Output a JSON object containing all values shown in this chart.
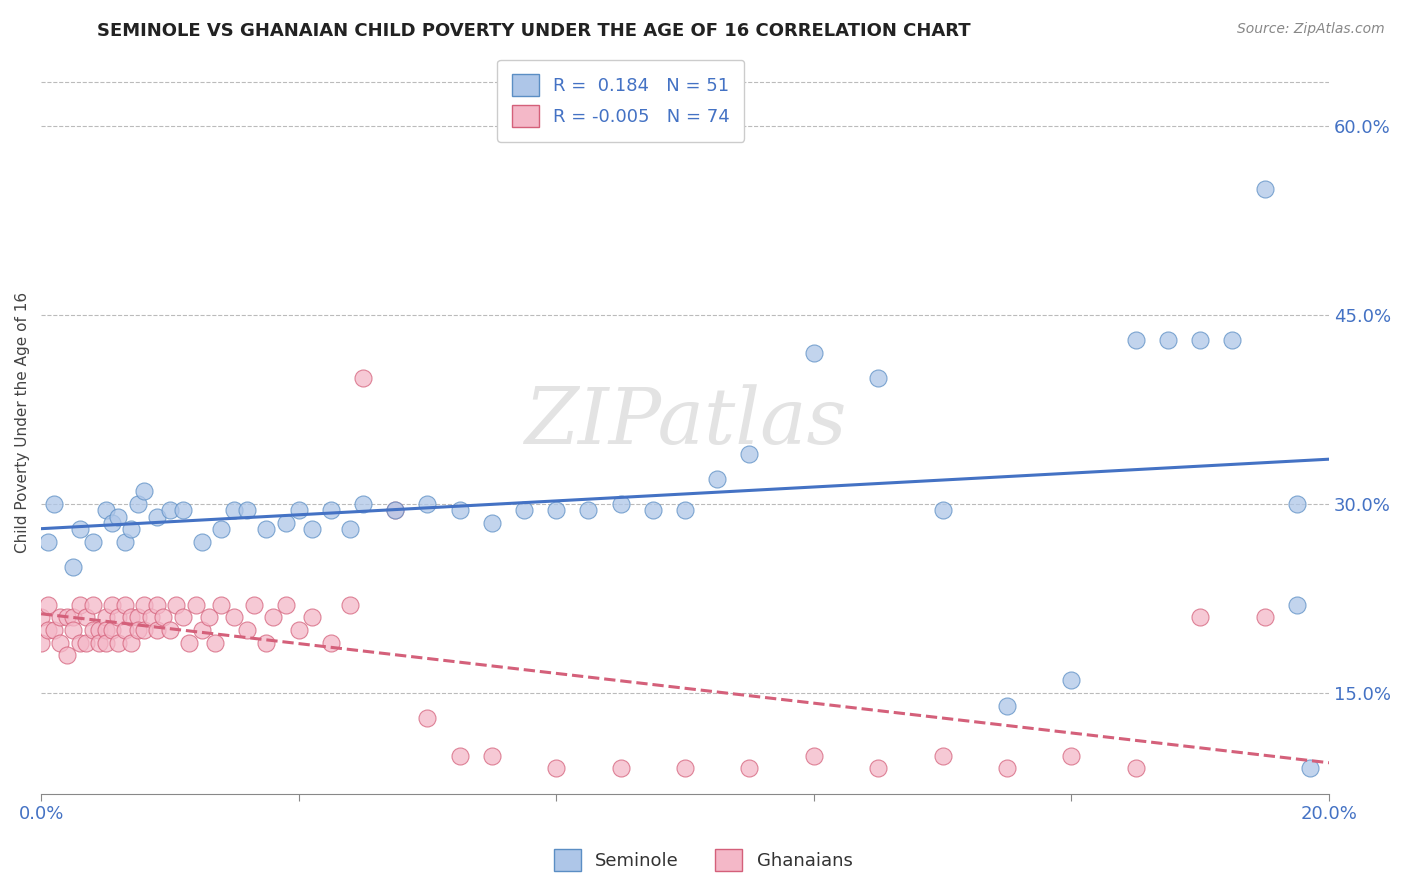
{
  "title": "SEMINOLE VS GHANAIAN CHILD POVERTY UNDER THE AGE OF 16 CORRELATION CHART",
  "source": "Source: ZipAtlas.com",
  "ylabel": "Child Poverty Under the Age of 16",
  "xlim": [
    0.0,
    0.2
  ],
  "ylim": [
    0.07,
    0.66
  ],
  "y_tick_values_right": [
    0.15,
    0.3,
    0.45,
    0.6
  ],
  "y_tick_labels_right": [
    "15.0%",
    "30.0%",
    "45.0%",
    "60.0%"
  ],
  "seminole_R": 0.184,
  "seminole_N": 51,
  "ghanaian_R": -0.005,
  "ghanaian_N": 74,
  "seminole_color": "#aec6e8",
  "ghanaian_color": "#f4b8c8",
  "seminole_edge_color": "#5b8ec4",
  "ghanaian_edge_color": "#d4607a",
  "seminole_line_color": "#4472c4",
  "ghanaian_line_color": "#d4607a",
  "background_color": "#ffffff",
  "watermark": "ZIPatlas",
  "seminole_x": [
    0.001,
    0.002,
    0.005,
    0.006,
    0.008,
    0.01,
    0.011,
    0.012,
    0.013,
    0.014,
    0.015,
    0.016,
    0.018,
    0.02,
    0.022,
    0.025,
    0.028,
    0.03,
    0.032,
    0.035,
    0.038,
    0.04,
    0.042,
    0.045,
    0.048,
    0.05,
    0.055,
    0.06,
    0.065,
    0.07,
    0.075,
    0.08,
    0.085,
    0.09,
    0.095,
    0.1,
    0.105,
    0.11,
    0.12,
    0.13,
    0.14,
    0.15,
    0.16,
    0.17,
    0.175,
    0.18,
    0.185,
    0.19,
    0.195,
    0.195,
    0.197
  ],
  "seminole_y": [
    0.27,
    0.3,
    0.25,
    0.28,
    0.27,
    0.295,
    0.285,
    0.29,
    0.27,
    0.28,
    0.3,
    0.31,
    0.29,
    0.295,
    0.295,
    0.27,
    0.28,
    0.295,
    0.295,
    0.28,
    0.285,
    0.295,
    0.28,
    0.295,
    0.28,
    0.3,
    0.295,
    0.3,
    0.295,
    0.285,
    0.295,
    0.295,
    0.295,
    0.3,
    0.295,
    0.295,
    0.32,
    0.34,
    0.42,
    0.4,
    0.295,
    0.14,
    0.16,
    0.43,
    0.43,
    0.43,
    0.43,
    0.55,
    0.22,
    0.3,
    0.09
  ],
  "ghanaian_x": [
    0.0,
    0.0,
    0.001,
    0.001,
    0.002,
    0.003,
    0.003,
    0.004,
    0.004,
    0.005,
    0.005,
    0.006,
    0.006,
    0.007,
    0.007,
    0.008,
    0.008,
    0.009,
    0.009,
    0.01,
    0.01,
    0.01,
    0.011,
    0.011,
    0.012,
    0.012,
    0.013,
    0.013,
    0.014,
    0.014,
    0.015,
    0.015,
    0.016,
    0.016,
    0.017,
    0.018,
    0.018,
    0.019,
    0.02,
    0.021,
    0.022,
    0.023,
    0.024,
    0.025,
    0.026,
    0.027,
    0.028,
    0.03,
    0.032,
    0.033,
    0.035,
    0.036,
    0.038,
    0.04,
    0.042,
    0.045,
    0.048,
    0.05,
    0.055,
    0.06,
    0.065,
    0.07,
    0.08,
    0.09,
    0.1,
    0.11,
    0.12,
    0.13,
    0.14,
    0.15,
    0.16,
    0.17,
    0.18,
    0.19
  ],
  "ghanaian_y": [
    0.21,
    0.19,
    0.22,
    0.2,
    0.2,
    0.21,
    0.19,
    0.21,
    0.18,
    0.21,
    0.2,
    0.22,
    0.19,
    0.21,
    0.19,
    0.2,
    0.22,
    0.2,
    0.19,
    0.21,
    0.2,
    0.19,
    0.22,
    0.2,
    0.21,
    0.19,
    0.2,
    0.22,
    0.21,
    0.19,
    0.21,
    0.2,
    0.22,
    0.2,
    0.21,
    0.2,
    0.22,
    0.21,
    0.2,
    0.22,
    0.21,
    0.19,
    0.22,
    0.2,
    0.21,
    0.19,
    0.22,
    0.21,
    0.2,
    0.22,
    0.19,
    0.21,
    0.22,
    0.2,
    0.21,
    0.19,
    0.22,
    0.4,
    0.295,
    0.13,
    0.1,
    0.1,
    0.09,
    0.09,
    0.09,
    0.09,
    0.1,
    0.09,
    0.1,
    0.09,
    0.1,
    0.09,
    0.21,
    0.21
  ]
}
